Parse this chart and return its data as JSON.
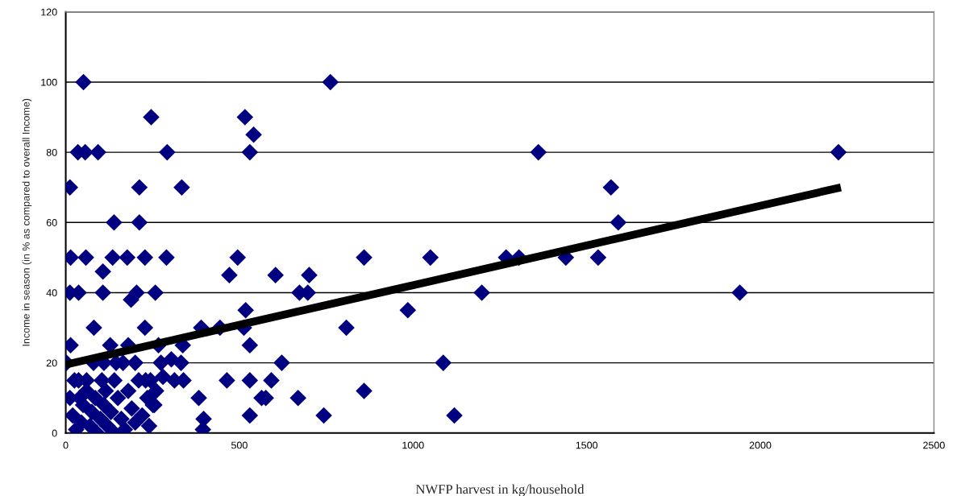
{
  "chart_data": {
    "type": "scatter",
    "xlabel": "NWFP harvest in kg/household",
    "ylabel": "Income in season (in % as compared to overall Income)",
    "xlim": [
      0,
      2500
    ],
    "xticks": [
      0,
      500,
      1000,
      1500,
      2000,
      2500
    ],
    "ylim": [
      0,
      120
    ],
    "yticks": [
      0,
      20,
      40,
      60,
      80,
      100,
      120
    ],
    "grid": "y",
    "series": [
      {
        "marker": "diamond",
        "color": "#000080",
        "x": [
          51,
          762,
          35,
          56,
          93,
          292,
          530,
          1361,
          2225,
          246,
          516,
          541,
          12,
          212,
          334,
          1570,
          139,
          212,
          1591,
          14,
          58,
          135,
          177,
          228,
          290,
          495,
          859,
          1050,
          1268,
          1305,
          1440,
          1533,
          107,
          471,
          604,
          701,
          12,
          37,
          107,
          204,
          258,
          673,
          697,
          1198,
          1941,
          188,
          518,
          985,
          81,
          228,
          390,
          444,
          513,
          808,
          14,
          128,
          267,
          337,
          530,
          2,
          622,
          1087,
          274,
          304,
          332,
          37,
          104,
          244,
          313,
          339,
          464,
          530,
          592,
          12,
          383,
          564,
          669,
          251,
          859,
          530,
          397,
          743,
          1119,
          395,
          20,
          30,
          45,
          50,
          60,
          70,
          75,
          85,
          90,
          100,
          110,
          115,
          120,
          130,
          140,
          150,
          160,
          170,
          180,
          190,
          200,
          210,
          220,
          235,
          240,
          255,
          60,
          40,
          25,
          140,
          165,
          200,
          110,
          80,
          145,
          230,
          180,
          260,
          280,
          576
        ],
        "values": [
          100,
          100,
          80,
          80,
          80,
          80,
          80,
          80,
          80,
          90,
          90,
          85,
          70,
          70,
          70,
          70,
          60,
          60,
          60,
          50,
          50,
          50,
          50,
          50,
          50,
          50,
          50,
          50,
          50,
          50,
          50,
          50,
          46,
          45,
          45,
          45,
          40,
          40,
          40,
          40,
          40,
          40,
          40,
          40,
          40,
          38,
          35,
          35,
          30,
          30,
          30,
          30,
          30,
          30,
          25,
          25,
          25,
          25,
          25,
          20,
          20,
          20,
          20,
          21,
          20,
          15,
          15,
          15,
          15,
          15,
          15,
          15,
          15,
          10,
          10,
          10,
          10,
          8,
          12,
          5,
          4,
          5,
          5,
          1,
          5,
          1,
          3,
          8,
          12,
          2,
          6,
          10,
          0,
          4,
          8,
          12,
          2,
          6,
          0,
          10,
          4,
          1,
          12,
          7,
          3,
          15,
          5,
          10,
          2,
          8,
          15,
          10,
          15,
          15,
          20,
          20,
          20,
          20,
          20,
          15,
          25,
          12,
          16,
          10
        ]
      },
      {
        "type": "line",
        "marker": "none",
        "line_style": "solid",
        "color": "#000000",
        "x": [
          0,
          2232
        ],
        "values": [
          19.5,
          70
        ]
      }
    ]
  }
}
